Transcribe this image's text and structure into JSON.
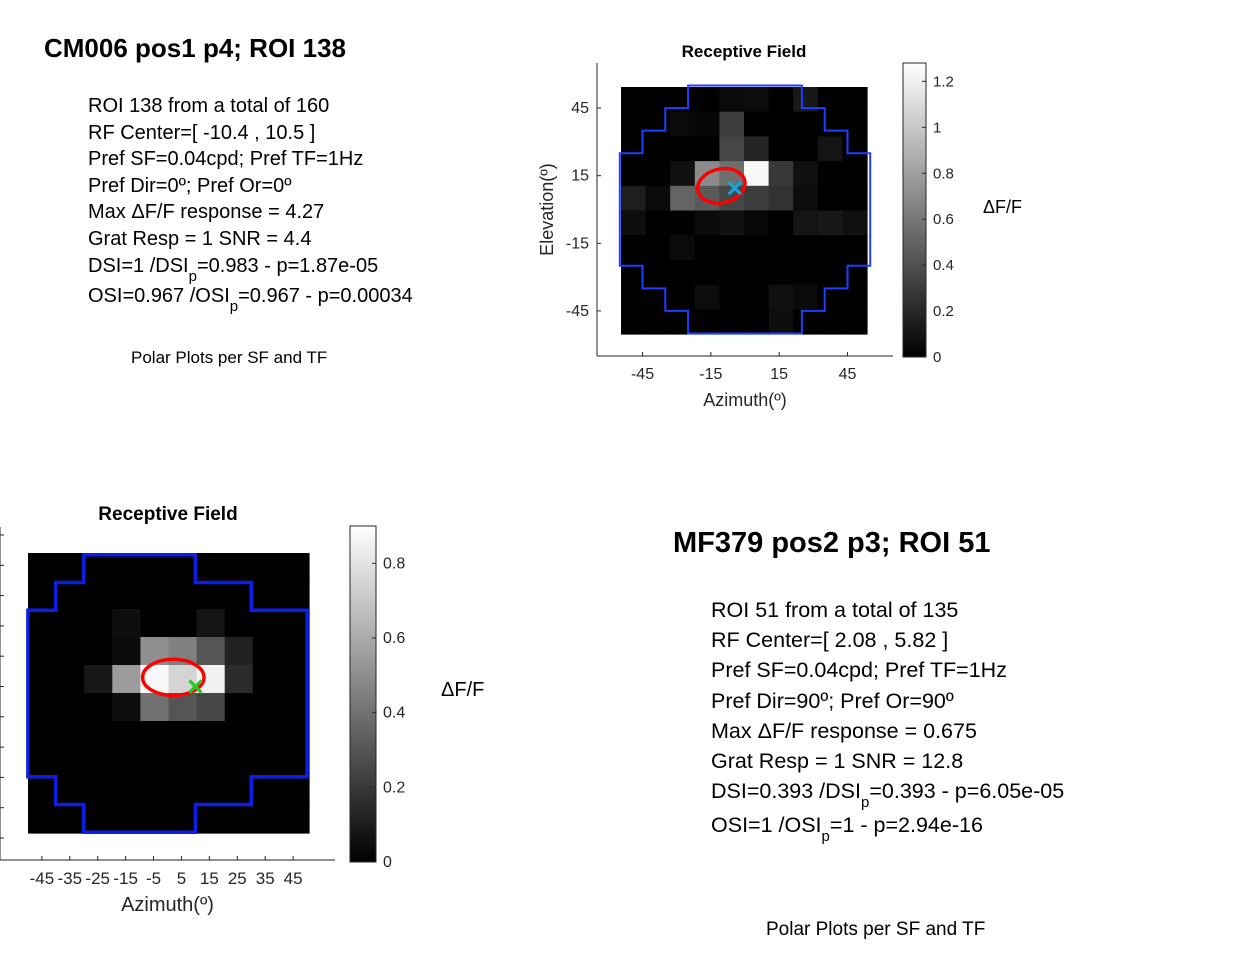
{
  "panels": [
    {
      "title": "CM006 pos1 p4; ROI 138",
      "info": {
        "roi": "ROI 138 from a total of 160",
        "rf_center": "RF Center=[ -10.4 , 10.5 ]",
        "pref_sf_tf": "Pref SF=0.04cpd; Pref TF=1Hz",
        "pref_dir_or": "Pref Dir=0º; Pref Or=0º",
        "max_response": "Max ΔF/F response = 4.27",
        "grat_resp": "Grat Resp = 1 SNR = 4.4",
        "dsi_a": "DSI=1 /DSI",
        "dsi_sub": "p",
        "dsi_b": "=0.983 - p=1.87e-05",
        "osi_a": "OSI=0.967 /OSI",
        "osi_sub": "p",
        "osi_b": "=0.967 - p=0.00034"
      },
      "polar_caption": "Polar Plots per SF and TF"
    },
    {
      "title": "MF379 pos2 p3; ROI 51",
      "info": {
        "roi": "ROI 51 from a total of 135",
        "rf_center": "RF Center=[ 2.08 , 5.82 ]",
        "pref_sf_tf": "Pref SF=0.04cpd; Pref TF=1Hz",
        "pref_dir_or": "Pref Dir=90º; Pref Or=90º",
        "max_response": "Max ΔF/F response = 0.675",
        "grat_resp": "Grat Resp = 1 SNR = 12.8",
        "dsi_a": "DSI=0.393 /DSI",
        "dsi_sub": "p",
        "dsi_b": "=0.393 - p=6.05e-05",
        "osi_a": "OSI=1 /OSI",
        "osi_sub": "p",
        "osi_b": "=1 - p=2.94e-16"
      },
      "polar_caption": "Polar Plots per SF and TF"
    }
  ],
  "chart_data": [
    {
      "type": "heatmap",
      "title": "Receptive Field",
      "xlabel": "Azimuth(º)",
      "ylabel": "Elevation(º)",
      "x_ticks": [
        -45,
        -15,
        15,
        45
      ],
      "y_ticks": [
        45,
        15,
        -15,
        -45
      ],
      "extent": {
        "x": [
          -55,
          55
        ],
        "y": [
          -55,
          55
        ]
      },
      "axis_limits": {
        "x": [
          -65,
          65
        ],
        "y": [
          -65,
          65
        ]
      },
      "grid_shape": [
        10,
        10
      ],
      "values": [
        [
          0,
          0,
          0,
          0,
          0.05,
          0.06,
          0,
          0.12,
          0,
          0
        ],
        [
          0,
          0,
          0.05,
          0.03,
          0.3,
          0,
          0,
          0,
          0,
          0
        ],
        [
          0,
          0,
          0,
          0,
          0.35,
          0.18,
          0,
          0,
          0.1,
          0
        ],
        [
          0,
          0,
          0.08,
          0.7,
          0.55,
          1.25,
          0.28,
          0.08,
          0,
          0
        ],
        [
          0.15,
          0.05,
          0.5,
          0.45,
          0.35,
          0.3,
          0.25,
          0.06,
          0,
          0
        ],
        [
          0.07,
          0,
          0,
          0.05,
          0.08,
          0.04,
          0,
          0.1,
          0.12,
          0.08
        ],
        [
          0,
          0,
          0.05,
          0,
          0,
          0,
          0,
          0,
          0,
          0
        ],
        [
          0,
          0,
          0,
          0,
          0,
          0,
          0,
          0,
          0,
          0
        ],
        [
          0,
          0,
          0,
          0.06,
          0,
          0,
          0.08,
          0.05,
          0,
          0
        ],
        [
          0,
          0,
          0,
          0,
          0,
          0,
          0.07,
          0,
          0,
          0
        ]
      ],
      "mask_outline": [
        [
          -55,
          -25
        ],
        [
          -45,
          -25
        ],
        [
          -45,
          -35
        ],
        [
          -35,
          -35
        ],
        [
          -35,
          -45
        ],
        [
          -25,
          -45
        ],
        [
          -25,
          -55
        ],
        [
          25,
          -55
        ],
        [
          25,
          -45
        ],
        [
          35,
          -45
        ],
        [
          35,
          -35
        ],
        [
          45,
          -35
        ],
        [
          45,
          -25
        ],
        [
          55,
          -25
        ],
        [
          55,
          25
        ],
        [
          45,
          25
        ],
        [
          45,
          35
        ],
        [
          35,
          35
        ],
        [
          35,
          45
        ],
        [
          25,
          45
        ],
        [
          25,
          55
        ],
        [
          -25,
          55
        ],
        [
          -25,
          45
        ],
        [
          -35,
          45
        ],
        [
          -35,
          35
        ],
        [
          -45,
          35
        ],
        [
          -45,
          25
        ],
        [
          -55,
          25
        ]
      ],
      "mask_color": "#1f3fff",
      "ellipse": {
        "cx": -10.4,
        "cy": 10.5,
        "rx": 10.5,
        "ry": 7.5,
        "angle_deg": -12,
        "color": "#ff0000"
      },
      "center_marker": {
        "x": -4.5,
        "y": 9.5,
        "color": "#1aa3d9"
      },
      "colorbar": {
        "label": "ΔF/F",
        "range": [
          0,
          1.28
        ],
        "ticks": [
          0,
          0.2,
          0.4,
          0.6,
          0.8,
          1,
          1.2
        ],
        "tick_labels": [
          "0",
          "0.2",
          "0.4",
          "0.6",
          "0.8",
          "1",
          "1.2"
        ]
      }
    },
    {
      "type": "heatmap",
      "title": "Receptive Field",
      "xlabel": "Azimuth(º)",
      "ylabel": "",
      "x_ticks": [
        -45,
        -35,
        -25,
        -15,
        -5,
        5,
        15,
        25,
        35,
        45
      ],
      "y_ticks": [],
      "extent": {
        "x": [
          -50,
          50
        ],
        "y": [
          -50,
          50
        ]
      },
      "axis_limits": {
        "x": [
          -60,
          60
        ],
        "y": [
          -60,
          60
        ]
      },
      "grid_shape": [
        10,
        10
      ],
      "values": [
        [
          0,
          0,
          0,
          0,
          0,
          0,
          0,
          0,
          0,
          0
        ],
        [
          0,
          0,
          0,
          0,
          0,
          0,
          0,
          0,
          0,
          0
        ],
        [
          0,
          0,
          0,
          0.05,
          0,
          0,
          0.07,
          0,
          0,
          0
        ],
        [
          0,
          0,
          0,
          0.04,
          0.5,
          0.45,
          0.3,
          0.12,
          0,
          0
        ],
        [
          0,
          0,
          0.08,
          0.55,
          0.88,
          0.75,
          0.85,
          0.15,
          0,
          0
        ],
        [
          0,
          0,
          0,
          0.05,
          0.4,
          0.3,
          0.25,
          0,
          0,
          0
        ],
        [
          0,
          0,
          0,
          0,
          0,
          0,
          0,
          0,
          0,
          0
        ],
        [
          0,
          0,
          0,
          0,
          0,
          0,
          0,
          0,
          0,
          0
        ],
        [
          0,
          0,
          0,
          0,
          0,
          0,
          0,
          0,
          0,
          0
        ],
        [
          0,
          0,
          0,
          0,
          0,
          0,
          0,
          0,
          0,
          0
        ]
      ],
      "mask_outline": [
        [
          -50,
          -30
        ],
        [
          -40,
          -30
        ],
        [
          -40,
          -40
        ],
        [
          -30,
          -40
        ],
        [
          -30,
          -50
        ],
        [
          10,
          -50
        ],
        [
          10,
          -40
        ],
        [
          30,
          -40
        ],
        [
          30,
          -30
        ],
        [
          50,
          -30
        ],
        [
          50,
          30
        ],
        [
          30,
          30
        ],
        [
          30,
          40
        ],
        [
          10,
          40
        ],
        [
          10,
          50
        ],
        [
          -30,
          50
        ],
        [
          -30,
          40
        ],
        [
          -40,
          40
        ],
        [
          -40,
          30
        ],
        [
          -50,
          30
        ]
      ],
      "mask_color": "#0d1fe6",
      "ellipse": {
        "cx": 2.08,
        "cy": 5.82,
        "rx": 11,
        "ry": 6.5,
        "angle_deg": 0,
        "color": "#ff0000"
      },
      "center_marker": {
        "x": 10,
        "y": 2.5,
        "color": "#22cc22"
      },
      "colorbar": {
        "label": "ΔF/F",
        "range": [
          0,
          0.9
        ],
        "ticks": [
          0,
          0.2,
          0.4,
          0.6,
          0.8
        ],
        "tick_labels": [
          "0",
          "0.2",
          "0.4",
          "0.6",
          "0.8"
        ]
      }
    }
  ]
}
